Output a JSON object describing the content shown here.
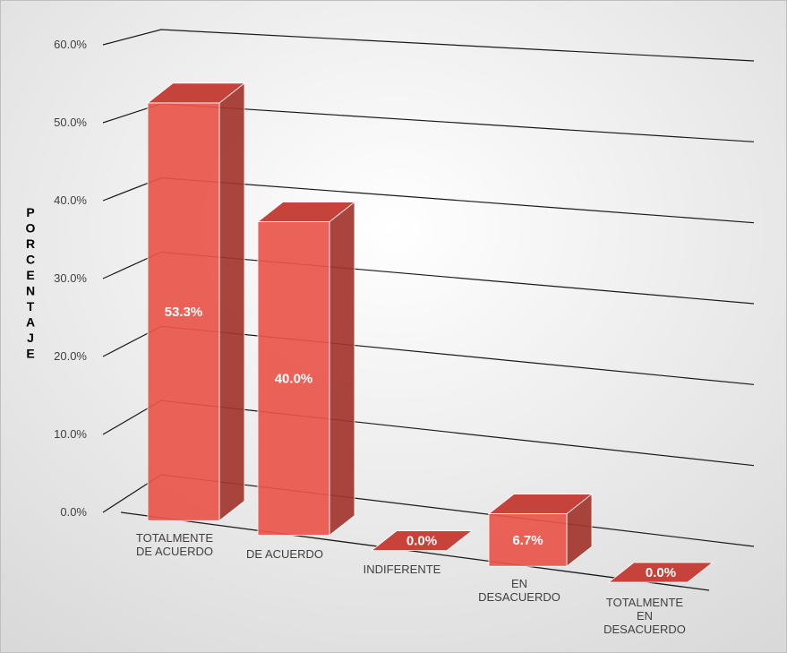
{
  "chart_data": {
    "type": "bar3d",
    "categories": [
      "TOTALMENTE\nDE ACUERDO",
      "DE ACUERDO",
      "INDIFERENTE",
      "EN\nDESACUERDO",
      "TOTALMENTE\nEN\nDESACUERDO"
    ],
    "values": [
      53.3,
      40.0,
      0.0,
      6.7,
      0.0
    ],
    "value_labels": [
      "53.3%",
      "40.0%",
      "0.0%",
      "6.7%",
      "0.0%"
    ],
    "color": "#e8554a",
    "y_label": "PORCENTAJE",
    "ylim": [
      0,
      60
    ],
    "yticks": [
      {
        "value": 0,
        "label": "0.0%"
      },
      {
        "value": 10,
        "label": "10.0%"
      },
      {
        "value": 20,
        "label": "20.0%"
      },
      {
        "value": 30,
        "label": "30.0%"
      },
      {
        "value": 40,
        "label": "40.0%"
      },
      {
        "value": 50,
        "label": "50.0%"
      },
      {
        "value": 60,
        "label": "60.0%"
      }
    ],
    "grid": true
  }
}
